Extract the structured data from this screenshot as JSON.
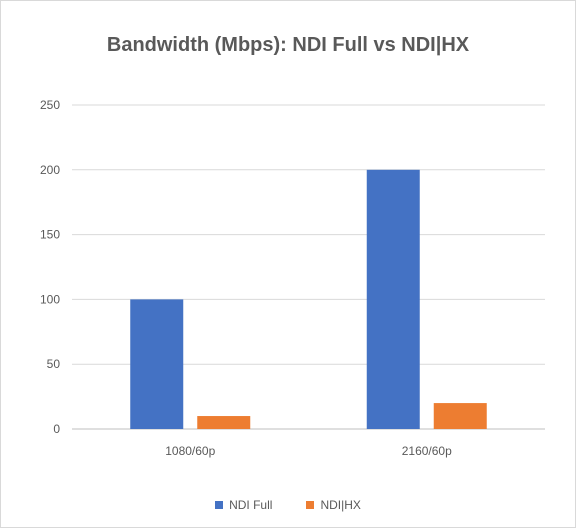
{
  "chart_data": {
    "type": "bar",
    "title": "Bandwidth (Mbps): NDI Full vs NDI|HX",
    "categories": [
      "1080/60p",
      "2160/60p"
    ],
    "series": [
      {
        "name": "NDI Full",
        "values": [
          100,
          200
        ],
        "color": "#4472c4"
      },
      {
        "name": "NDI|HX",
        "values": [
          10,
          20
        ],
        "color": "#ed7d31"
      }
    ],
    "ylim": [
      0,
      250
    ],
    "yticks": [
      0,
      50,
      100,
      150,
      200,
      250
    ],
    "grid": true,
    "legend_position": "bottom"
  }
}
